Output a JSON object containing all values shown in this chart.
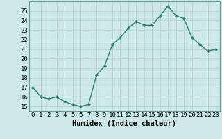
{
  "x": [
    0,
    1,
    2,
    3,
    4,
    5,
    6,
    7,
    8,
    9,
    10,
    11,
    12,
    13,
    14,
    15,
    16,
    17,
    18,
    19,
    20,
    21,
    22,
    23
  ],
  "y": [
    17,
    16,
    15.8,
    16,
    15.5,
    15.2,
    15,
    15.2,
    18.3,
    19.2,
    21.5,
    22.2,
    23.2,
    23.9,
    23.5,
    23.5,
    24.5,
    25.5,
    24.5,
    24.2,
    22.2,
    21.5,
    20.8,
    21
  ],
  "line_color": "#2e7d6e",
  "marker": "D",
  "marker_size": 2,
  "bg_color": "#cce8e8",
  "grid_color": "#b0d0d0",
  "xlabel": "Humidex (Indice chaleur)",
  "ylim": [
    14.5,
    26
  ],
  "xlim": [
    -0.5,
    23.5
  ],
  "yticks": [
    15,
    16,
    17,
    18,
    19,
    20,
    21,
    22,
    23,
    24,
    25
  ],
  "xticks": [
    0,
    1,
    2,
    3,
    4,
    5,
    6,
    7,
    8,
    9,
    10,
    11,
    12,
    13,
    14,
    15,
    16,
    17,
    18,
    19,
    20,
    21,
    22,
    23
  ],
  "xlabel_fontsize": 7.5,
  "tick_fontsize": 6.5,
  "line_width": 1.0
}
